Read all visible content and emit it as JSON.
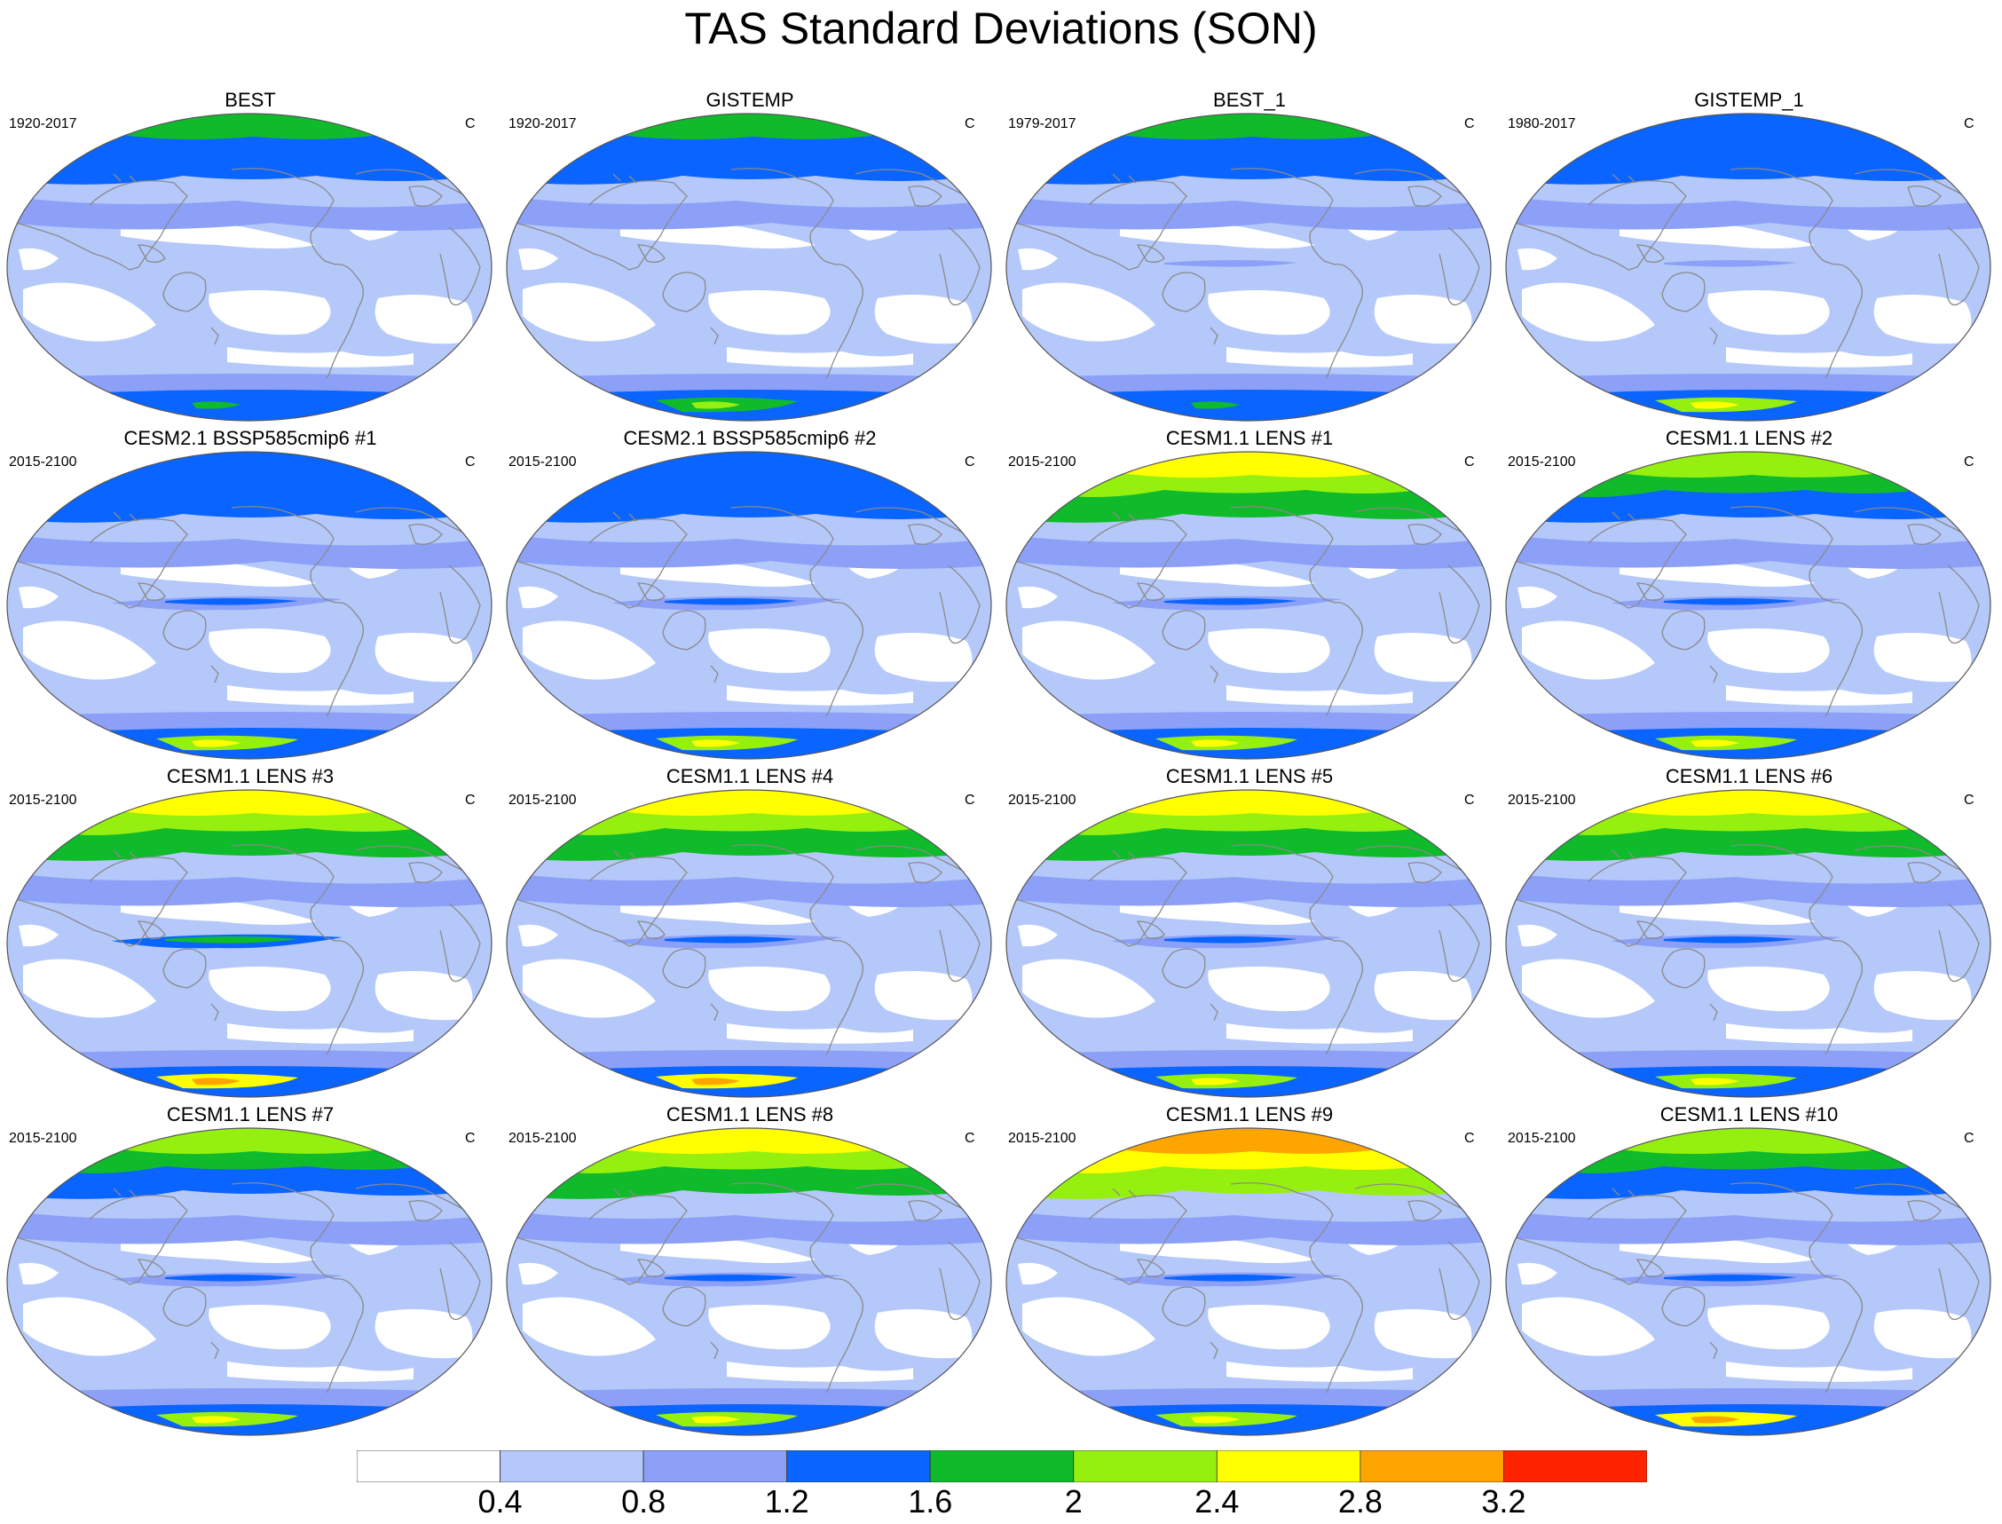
{
  "title": "TAS Standard Deviations (SON)",
  "colorbar": {
    "colors": [
      "#ffffff",
      "#b4c8fa",
      "#8ca0f8",
      "#0a64ff",
      "#0fba2b",
      "#96f00f",
      "#ffff00",
      "#ffa500",
      "#ff2300"
    ],
    "labels": [
      "0.4",
      "0.8",
      "1.2",
      "1.6",
      "2",
      "2.4",
      "2.8",
      "3.2"
    ]
  },
  "panels": [
    {
      "title": "BEST",
      "period": "1920-2017",
      "units": "C",
      "arctic_level": 4,
      "antarctic_level": 3,
      "enso_level": 1
    },
    {
      "title": "GISTEMP",
      "period": "1920-2017",
      "units": "C",
      "arctic_level": 4,
      "antarctic_level": 4,
      "enso_level": 1
    },
    {
      "title": "BEST_1",
      "period": "1979-2017",
      "units": "C",
      "arctic_level": 4,
      "antarctic_level": 3,
      "enso_level": 2
    },
    {
      "title": "GISTEMP_1",
      "period": "1980-2017",
      "units": "C",
      "arctic_level": 3,
      "antarctic_level": 5,
      "enso_level": 2
    },
    {
      "title": "CESM2.1 BSSP585cmip6 #1",
      "period": "2015-2100",
      "units": "C",
      "arctic_level": 3,
      "antarctic_level": 5,
      "enso_level": 3
    },
    {
      "title": "CESM2.1 BSSP585cmip6 #2",
      "period": "2015-2100",
      "units": "C",
      "arctic_level": 3,
      "antarctic_level": 5,
      "enso_level": 3
    },
    {
      "title": "CESM1.1 LENS #1",
      "period": "2015-2100",
      "units": "C",
      "arctic_level": 6,
      "antarctic_level": 5,
      "enso_level": 3
    },
    {
      "title": "CESM1.1 LENS #2",
      "period": "2015-2100",
      "units": "C",
      "arctic_level": 5,
      "antarctic_level": 5,
      "enso_level": 3
    },
    {
      "title": "CESM1.1 LENS #3",
      "period": "2015-2100",
      "units": "C",
      "arctic_level": 6,
      "antarctic_level": 6,
      "enso_level": 4
    },
    {
      "title": "CESM1.1 LENS #4",
      "period": "2015-2100",
      "units": "C",
      "arctic_level": 6,
      "antarctic_level": 6,
      "enso_level": 3
    },
    {
      "title": "CESM1.1 LENS #5",
      "period": "2015-2100",
      "units": "C",
      "arctic_level": 6,
      "antarctic_level": 5,
      "enso_level": 3
    },
    {
      "title": "CESM1.1 LENS #6",
      "period": "2015-2100",
      "units": "C",
      "arctic_level": 6,
      "antarctic_level": 5,
      "enso_level": 3
    },
    {
      "title": "CESM1.1 LENS #7",
      "period": "2015-2100",
      "units": "C",
      "arctic_level": 5,
      "antarctic_level": 5,
      "enso_level": 3
    },
    {
      "title": "CESM1.1 LENS #8",
      "period": "2015-2100",
      "units": "C",
      "arctic_level": 6,
      "antarctic_level": 5,
      "enso_level": 3
    },
    {
      "title": "CESM1.1 LENS #9",
      "period": "2015-2100",
      "units": "C",
      "arctic_level": 7,
      "antarctic_level": 5,
      "enso_level": 3
    },
    {
      "title": "CESM1.1 LENS #10",
      "period": "2015-2100",
      "units": "C",
      "arctic_level": 5,
      "antarctic_level": 6,
      "enso_level": 3
    }
  ]
}
